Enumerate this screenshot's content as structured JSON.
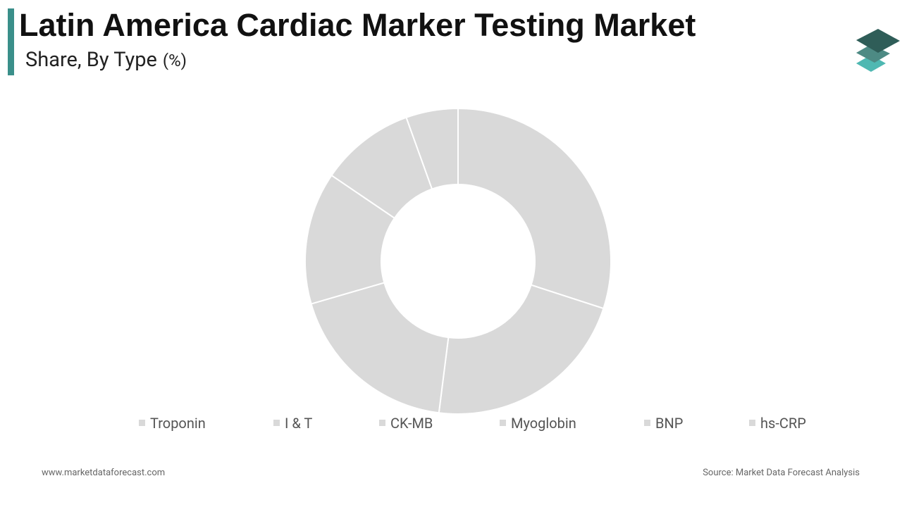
{
  "chart_data": {
    "type": "donut",
    "title": "Latin America Cardiac Marker Testing Market",
    "subtitle": "Share, By Type",
    "unit": "(%)",
    "categories": [
      "Troponin",
      "I & T",
      "CK-MB",
      "Myoglobin",
      "BNP",
      "hs-CRP"
    ],
    "values": [
      30,
      22,
      18.5,
      14,
      10,
      5.5
    ],
    "color": "#d9d9d9",
    "footer_left": "www.marketdataforecast.com",
    "footer_right": "Source: Market Data Forecast Analysis"
  }
}
